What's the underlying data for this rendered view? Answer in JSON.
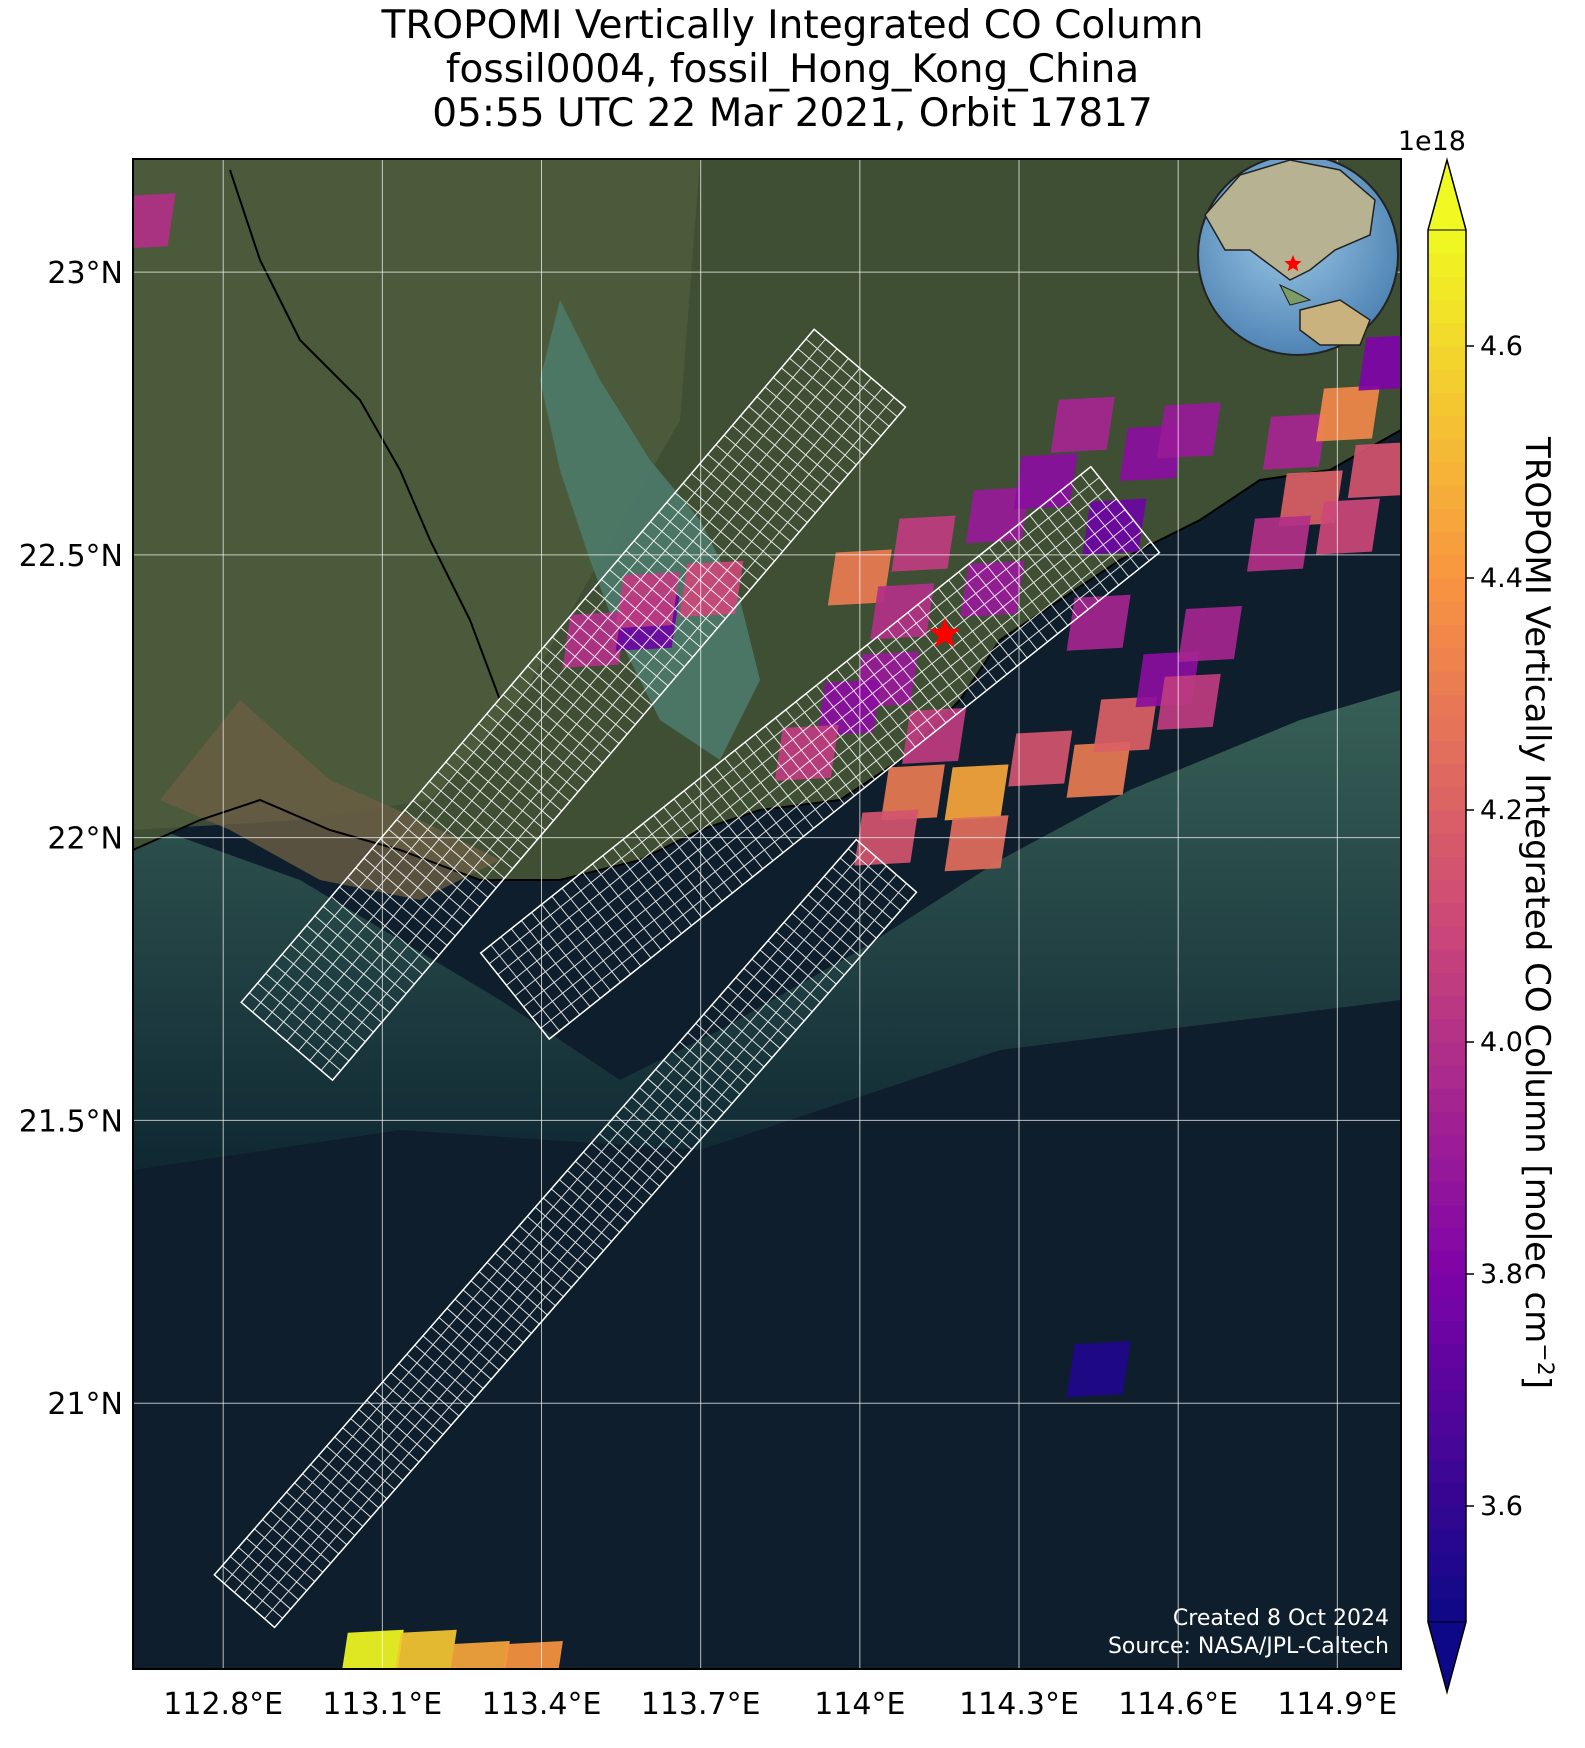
{
  "title": {
    "line1": "TROPOMI Vertically Integrated CO Column",
    "line2": "fossil0004, fossil_Hong_Kong_China",
    "line3": "05:55 UTC 22 Mar 2021, Orbit 17817"
  },
  "map": {
    "extent": {
      "lon_min": 112.63,
      "lon_max": 115.02,
      "lat_min": 20.53,
      "lat_max": 23.2
    },
    "lon_ticks": [
      {
        "value": 112.8,
        "label": "112.8°E"
      },
      {
        "value": 113.1,
        "label": "113.1°E"
      },
      {
        "value": 113.4,
        "label": "113.4°E"
      },
      {
        "value": 113.7,
        "label": "113.7°E"
      },
      {
        "value": 114.0,
        "label": "114°E"
      },
      {
        "value": 114.3,
        "label": "114.3°E"
      },
      {
        "value": 114.6,
        "label": "114.6°E"
      },
      {
        "value": 114.9,
        "label": "114.9°E"
      }
    ],
    "lat_ticks": [
      {
        "value": 23.0,
        "label": "23°N"
      },
      {
        "value": 22.5,
        "label": "22.5°N"
      },
      {
        "value": 22.0,
        "label": "22°N"
      },
      {
        "value": 21.5,
        "label": "21.5°N"
      },
      {
        "value": 21.0,
        "label": "21°N"
      }
    ],
    "site_marker": {
      "lon": 114.16,
      "lat": 22.36,
      "color": "#ff0000"
    },
    "credit_line1": "Created 8 Oct 2024",
    "credit_line2": "Source: NASA/JPL-Caltech",
    "inset_globe_marker_color": "#ff0000"
  },
  "colorbar": {
    "colormap": "plasma",
    "label": "TROPOMI Vertically Integrated CO Column [molec cm",
    "label_exponent": "−2",
    "label_close": "]",
    "multiplier": "1e18",
    "vmin": 3.5,
    "vmax": 4.7,
    "ticks": [
      {
        "value": 3.6,
        "label": "3.6"
      },
      {
        "value": 3.8,
        "label": "3.8"
      },
      {
        "value": 4.0,
        "label": "4.0"
      },
      {
        "value": 4.2,
        "label": "4.2"
      },
      {
        "value": 4.4,
        "label": "4.4"
      },
      {
        "value": 4.6,
        "label": "4.6"
      }
    ]
  },
  "chart_data": {
    "type": "heatmap",
    "value_unit": "1e18 molec cm^-2",
    "pixels": [
      {
        "lon": 112.65,
        "lat": 23.09,
        "value": 4.0
      },
      {
        "lon": 113.5,
        "lat": 22.35,
        "value": 4.0
      },
      {
        "lon": 113.6,
        "lat": 22.38,
        "value": 3.75
      },
      {
        "lon": 113.72,
        "lat": 22.44,
        "value": 4.1
      },
      {
        "lon": 113.6,
        "lat": 22.42,
        "value": 4.05
      },
      {
        "lon": 114.0,
        "lat": 22.46,
        "value": 4.3
      },
      {
        "lon": 114.12,
        "lat": 22.52,
        "value": 4.05
      },
      {
        "lon": 114.08,
        "lat": 22.4,
        "value": 4.0
      },
      {
        "lon": 114.25,
        "lat": 22.44,
        "value": 3.9
      },
      {
        "lon": 114.05,
        "lat": 22.28,
        "value": 3.9
      },
      {
        "lon": 113.98,
        "lat": 22.23,
        "value": 3.85
      },
      {
        "lon": 114.14,
        "lat": 22.18,
        "value": 4.05
      },
      {
        "lon": 113.9,
        "lat": 22.15,
        "value": 4.05
      },
      {
        "lon": 114.1,
        "lat": 22.08,
        "value": 4.3
      },
      {
        "lon": 114.22,
        "lat": 22.08,
        "value": 4.45
      },
      {
        "lon": 114.05,
        "lat": 22.0,
        "value": 4.15
      },
      {
        "lon": 114.22,
        "lat": 21.99,
        "value": 4.25
      },
      {
        "lon": 114.34,
        "lat": 22.14,
        "value": 4.15
      },
      {
        "lon": 114.45,
        "lat": 22.12,
        "value": 4.3
      },
      {
        "lon": 114.5,
        "lat": 22.2,
        "value": 4.2
      },
      {
        "lon": 114.45,
        "lat": 22.38,
        "value": 3.95
      },
      {
        "lon": 114.58,
        "lat": 22.28,
        "value": 3.85
      },
      {
        "lon": 114.66,
        "lat": 22.36,
        "value": 3.95
      },
      {
        "lon": 114.62,
        "lat": 22.24,
        "value": 4.05
      },
      {
        "lon": 114.26,
        "lat": 22.57,
        "value": 3.9
      },
      {
        "lon": 114.35,
        "lat": 22.63,
        "value": 3.85
      },
      {
        "lon": 114.48,
        "lat": 22.55,
        "value": 3.75
      },
      {
        "lon": 114.55,
        "lat": 22.68,
        "value": 3.85
      },
      {
        "lon": 114.42,
        "lat": 22.73,
        "value": 3.95
      },
      {
        "lon": 114.62,
        "lat": 22.72,
        "value": 3.9
      },
      {
        "lon": 114.85,
        "lat": 22.6,
        "value": 4.2
      },
      {
        "lon": 114.82,
        "lat": 22.7,
        "value": 3.95
      },
      {
        "lon": 114.92,
        "lat": 22.75,
        "value": 4.35
      },
      {
        "lon": 114.98,
        "lat": 22.65,
        "value": 4.15
      },
      {
        "lon": 114.92,
        "lat": 22.55,
        "value": 4.1
      },
      {
        "lon": 114.79,
        "lat": 22.52,
        "value": 4.0
      },
      {
        "lon": 115.0,
        "lat": 22.84,
        "value": 3.8
      },
      {
        "lon": 114.45,
        "lat": 21.06,
        "value": 3.55
      },
      {
        "lon": 113.08,
        "lat": 20.55,
        "value": 4.7
      },
      {
        "lon": 113.18,
        "lat": 20.55,
        "value": 4.55
      },
      {
        "lon": 113.28,
        "lat": 20.53,
        "value": 4.45
      },
      {
        "lon": 113.38,
        "lat": 20.53,
        "value": 4.4
      }
    ]
  }
}
